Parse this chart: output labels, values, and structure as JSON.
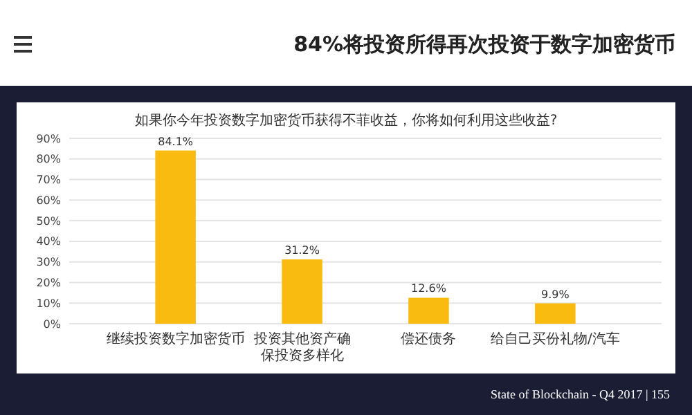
{
  "chart_data": {
    "type": "bar",
    "title": "84%将投资所得再次投资于数字加密货币",
    "subtitle": "如果你今年投资数字加密货币获得不菲收益，你将如何利用这些收益?",
    "categories": [
      "继续投资数字加密货币",
      "投资其他资产确保投资多样化",
      "偿还债务",
      "给自己买份礼物/汽车"
    ],
    "values": [
      84.1,
      31.2,
      12.6,
      9.9
    ],
    "color": "#f9bb0f",
    "value_labels": [
      "84.1%",
      "31.2%",
      "12.6%",
      "9.9%"
    ],
    "ylim": [
      0,
      90
    ],
    "yticks": [
      {
        "value": 0,
        "label": "0%"
      },
      {
        "value": 10,
        "label": "10%"
      },
      {
        "value": 20,
        "label": "20%"
      },
      {
        "value": 30,
        "label": "30%"
      },
      {
        "value": 40,
        "label": "40%"
      },
      {
        "value": 50,
        "label": "50%"
      },
      {
        "value": 60,
        "label": "60%"
      },
      {
        "value": 70,
        "label": "70%"
      },
      {
        "value": 80,
        "label": "80%"
      },
      {
        "value": 90,
        "label": "90%"
      }
    ],
    "grid": "y",
    "annotations": [
      "State of Blockchain - Q4 2017 | 155"
    ]
  }
}
